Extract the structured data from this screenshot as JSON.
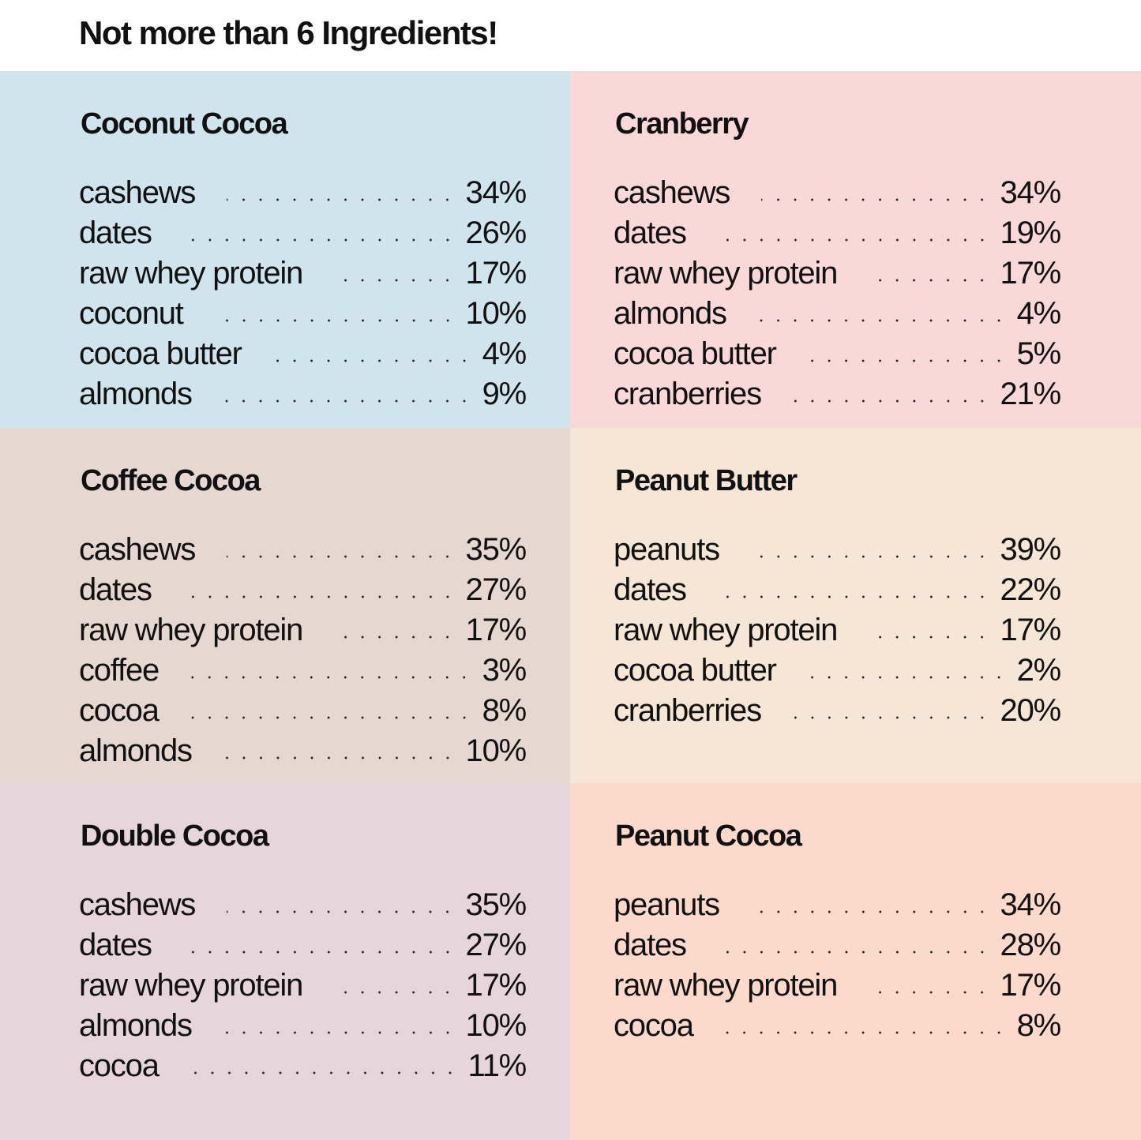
{
  "header": {
    "title": "Not more than 6 Ingredients!"
  },
  "panels": [
    {
      "name": "Coconut Cocoa",
      "color": "#cfe4ec",
      "ingredients": [
        {
          "name": "cashews",
          "amount": "34%"
        },
        {
          "name": "dates",
          "amount": "26%"
        },
        {
          "name": "raw whey protein",
          "amount": "17%"
        },
        {
          "name": "coconut",
          "amount": "10%"
        },
        {
          "name": "cocoa butter",
          "amount": "4%"
        },
        {
          "name": "almonds",
          "amount": "9%"
        }
      ]
    },
    {
      "name": "Cranberry",
      "color": "#f8d9d8",
      "ingredients": [
        {
          "name": "cashews",
          "amount": "34%"
        },
        {
          "name": "dates",
          "amount": "19%"
        },
        {
          "name": "raw whey protein",
          "amount": "17%"
        },
        {
          "name": "almonds",
          "amount": "4%"
        },
        {
          "name": "cocoa butter",
          "amount": "5%"
        },
        {
          "name": "cranberries",
          "amount": "21%"
        }
      ]
    },
    {
      "name": "Coffee Cocoa",
      "color": "#e6d8d0",
      "ingredients": [
        {
          "name": "cashews",
          "amount": "35%"
        },
        {
          "name": "dates",
          "amount": "27%"
        },
        {
          "name": "raw whey protein",
          "amount": "17%"
        },
        {
          "name": "coffee",
          "amount": "3%"
        },
        {
          "name": "cocoa",
          "amount": "8%"
        },
        {
          "name": "almonds",
          "amount": "10%"
        }
      ]
    },
    {
      "name": "Peanut Butter",
      "color": "#f6e6d6",
      "ingredients": [
        {
          "name": "peanuts",
          "amount": "39%"
        },
        {
          "name": "dates",
          "amount": "22%"
        },
        {
          "name": "raw whey protein",
          "amount": "17%"
        },
        {
          "name": "cocoa butter",
          "amount": "2%"
        },
        {
          "name": "cranberries",
          "amount": "20%"
        }
      ]
    },
    {
      "name": "Double Cocoa",
      "color": "#e6d6dc",
      "ingredients": [
        {
          "name": "cashews",
          "amount": "35%"
        },
        {
          "name": "dates",
          "amount": "27%"
        },
        {
          "name": "raw whey protein",
          "amount": "17%"
        },
        {
          "name": "almonds",
          "amount": "10%"
        },
        {
          "name": "cocoa",
          "amount": "11%"
        }
      ]
    },
    {
      "name": "Peanut Cocoa",
      "color": "#fbdacb",
      "ingredients": [
        {
          "name": "peanuts",
          "amount": "34%"
        },
        {
          "name": "dates",
          "amount": "28%"
        },
        {
          "name": "raw whey protein",
          "amount": "17%"
        },
        {
          "name": "cocoa",
          "amount": "8%"
        }
      ]
    }
  ]
}
